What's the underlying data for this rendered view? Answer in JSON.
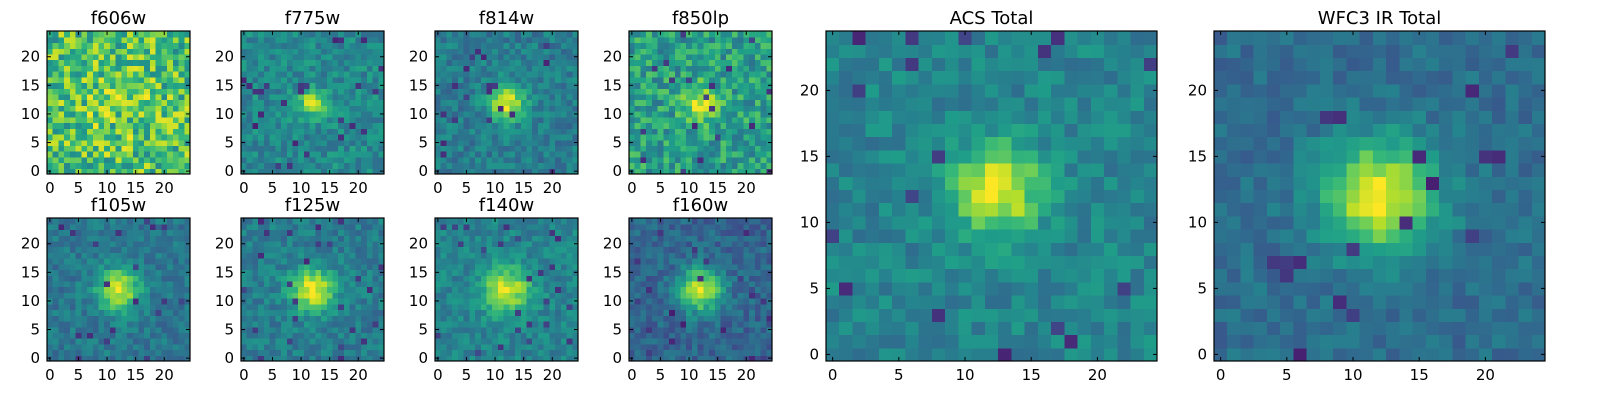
{
  "chart_data": [
    {
      "type": "heatmap",
      "title": "f606w",
      "grid": 25,
      "center": [
        13,
        12
      ],
      "peak": 0.12,
      "sigma": 4.0,
      "noise": 0.5,
      "base": 0.7,
      "floor": 0.45,
      "seed": 11,
      "xticks": [
        0,
        5,
        10,
        15,
        20
      ],
      "yticks": [
        0,
        5,
        10,
        15,
        20
      ],
      "xlim": [
        0,
        25
      ],
      "ylim": [
        0,
        25
      ]
    },
    {
      "type": "heatmap",
      "title": "f775w",
      "grid": 25,
      "center": [
        12.5,
        12.5
      ],
      "peak": 0.5,
      "sigma": 1.6,
      "noise": 0.24,
      "base": 0.47,
      "floor": 0.08,
      "seed": 23,
      "xticks": [
        0,
        5,
        10,
        15,
        20
      ],
      "yticks": [
        0,
        5,
        10,
        15,
        20
      ],
      "xlim": [
        0,
        25
      ],
      "ylim": [
        0,
        25
      ]
    },
    {
      "type": "heatmap",
      "title": "f814w",
      "grid": 25,
      "center": [
        12.5,
        12.5
      ],
      "peak": 0.55,
      "sigma": 2.2,
      "noise": 0.22,
      "base": 0.42,
      "floor": 0.1,
      "seed": 37,
      "xticks": [
        0,
        5,
        10,
        15,
        20
      ],
      "yticks": [
        0,
        5,
        10,
        15,
        20
      ],
      "xlim": [
        0,
        25
      ],
      "ylim": [
        0,
        25
      ]
    },
    {
      "type": "heatmap",
      "title": "f850lp",
      "grid": 25,
      "center": [
        12.5,
        12.5
      ],
      "peak": 0.35,
      "sigma": 2.2,
      "noise": 0.36,
      "base": 0.56,
      "floor": 0.1,
      "seed": 41,
      "xticks": [
        0,
        5,
        10,
        15,
        20
      ],
      "yticks": [
        0,
        5,
        10,
        15,
        20
      ],
      "xlim": [
        0,
        25
      ],
      "ylim": [
        0,
        25
      ]
    },
    {
      "type": "heatmap",
      "title": "f105w",
      "grid": 25,
      "center": [
        12.5,
        12.5
      ],
      "peak": 0.55,
      "sigma": 2.6,
      "noise": 0.2,
      "base": 0.4,
      "floor": 0.1,
      "seed": 53,
      "xticks": [
        0,
        5,
        10,
        15,
        20
      ],
      "yticks": [
        0,
        5,
        10,
        15,
        20
      ],
      "xlim": [
        0,
        25
      ],
      "ylim": [
        0,
        25
      ]
    },
    {
      "type": "heatmap",
      "title": "f125w",
      "grid": 25,
      "center": [
        12.5,
        12.5
      ],
      "peak": 0.55,
      "sigma": 2.7,
      "noise": 0.2,
      "base": 0.42,
      "floor": 0.1,
      "seed": 67,
      "xticks": [
        0,
        5,
        10,
        15,
        20
      ],
      "yticks": [
        0,
        5,
        10,
        15,
        20
      ],
      "xlim": [
        0,
        25
      ],
      "ylim": [
        0,
        25
      ]
    },
    {
      "type": "heatmap",
      "title": "f140w",
      "grid": 25,
      "center": [
        12.5,
        12.5
      ],
      "peak": 0.5,
      "sigma": 2.8,
      "noise": 0.2,
      "base": 0.45,
      "floor": 0.12,
      "seed": 71,
      "xticks": [
        0,
        5,
        10,
        15,
        20
      ],
      "yticks": [
        0,
        5,
        10,
        15,
        20
      ],
      "xlim": [
        0,
        25
      ],
      "ylim": [
        0,
        25
      ]
    },
    {
      "type": "heatmap",
      "title": "f160w",
      "grid": 25,
      "center": [
        12.5,
        12.5
      ],
      "peak": 0.62,
      "sigma": 2.6,
      "noise": 0.2,
      "base": 0.33,
      "floor": 0.08,
      "seed": 83,
      "xticks": [
        0,
        5,
        10,
        15,
        20
      ],
      "yticks": [
        0,
        5,
        10,
        15,
        20
      ],
      "xlim": [
        0,
        25
      ],
      "ylim": [
        0,
        25
      ]
    },
    {
      "type": "heatmap",
      "title": "ACS Total",
      "grid": 25,
      "center": [
        13,
        13
      ],
      "peak": 0.55,
      "sigma": 2.3,
      "noise": 0.2,
      "base": 0.45,
      "floor": 0.1,
      "seed": 97,
      "xticks": [
        0,
        5,
        10,
        15,
        20
      ],
      "yticks": [
        0,
        5,
        10,
        15,
        20
      ],
      "xlim": [
        0,
        25
      ],
      "ylim": [
        0,
        25
      ]
    },
    {
      "type": "heatmap",
      "title": "WFC3 IR Total",
      "grid": 25,
      "center": [
        12.5,
        12.5
      ],
      "peak": 0.62,
      "sigma": 3.0,
      "noise": 0.16,
      "base": 0.36,
      "floor": 0.08,
      "seed": 101,
      "xticks": [
        0,
        5,
        10,
        15,
        20
      ],
      "yticks": [
        0,
        5,
        10,
        15,
        20
      ],
      "xlim": [
        0,
        25
      ],
      "ylim": [
        0,
        25
      ]
    }
  ],
  "colormap": {
    "name": "viridis",
    "stops": [
      "#440154",
      "#482878",
      "#3e4989",
      "#31688e",
      "#26828e",
      "#1f9e89",
      "#35b779",
      "#6ece58",
      "#b5de2b",
      "#fde725"
    ]
  }
}
